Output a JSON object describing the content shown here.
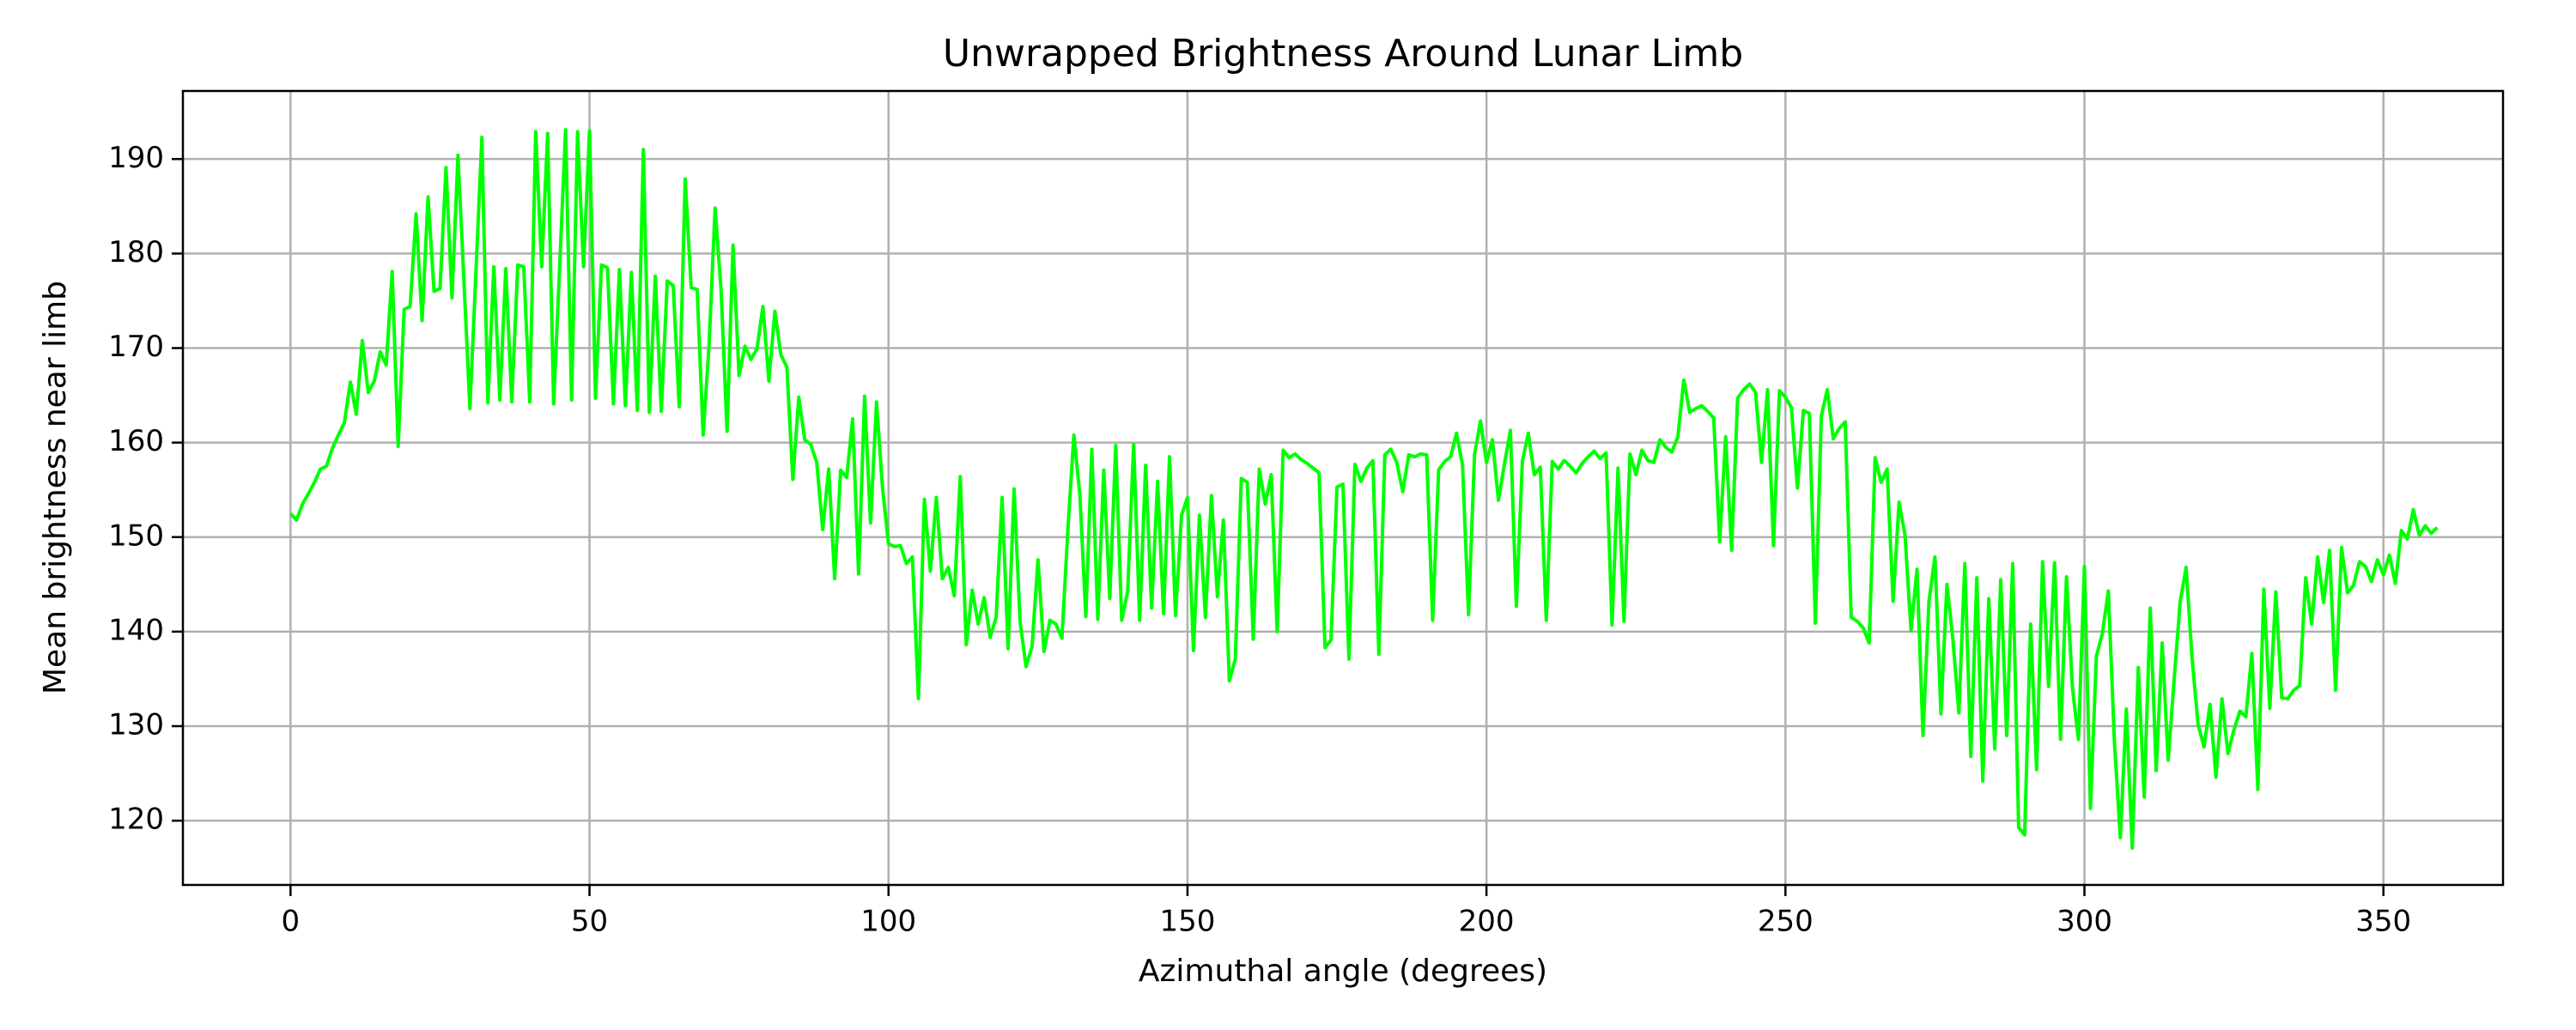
{
  "chart_data": {
    "type": "line",
    "title": "Unwrapped Brightness Around Lunar Limb",
    "x_label": "Azimuthal angle (degrees)",
    "y_label": "Mean brightness near limb",
    "xlim": [
      -18,
      370
    ],
    "ylim": [
      113.2,
      197.2
    ],
    "xticks": [
      0,
      50,
      100,
      150,
      200,
      250,
      300,
      350
    ],
    "yticks": [
      120,
      130,
      140,
      150,
      160,
      170,
      180,
      190
    ],
    "grid": true,
    "x": [
      0,
      1,
      2,
      3,
      4,
      5,
      6,
      7,
      8,
      9,
      10,
      11,
      12,
      13,
      14,
      15,
      16,
      17,
      18,
      19,
      20,
      21,
      22,
      23,
      24,
      25,
      26,
      27,
      28,
      29,
      30,
      31,
      32,
      33,
      34,
      35,
      36,
      37,
      38,
      39,
      40,
      41,
      42,
      43,
      44,
      45,
      46,
      47,
      48,
      49,
      50,
      51,
      52,
      53,
      54,
      55,
      56,
      57,
      58,
      59,
      60,
      61,
      62,
      63,
      64,
      65,
      66,
      67,
      68,
      69,
      70,
      71,
      72,
      73,
      74,
      75,
      76,
      77,
      78,
      79,
      80,
      81,
      82,
      83,
      84,
      85,
      86,
      87,
      88,
      89,
      90,
      91,
      92,
      93,
      94,
      95,
      96,
      97,
      98,
      99,
      100,
      101,
      102,
      103,
      104,
      105,
      106,
      107,
      108,
      109,
      110,
      111,
      112,
      113,
      114,
      115,
      116,
      117,
      118,
      119,
      120,
      121,
      122,
      123,
      124,
      125,
      126,
      127,
      128,
      129,
      130,
      131,
      132,
      133,
      134,
      135,
      136,
      137,
      138,
      139,
      140,
      141,
      142,
      143,
      144,
      145,
      146,
      147,
      148,
      149,
      150,
      151,
      152,
      153,
      154,
      155,
      156,
      157,
      158,
      159,
      160,
      161,
      162,
      163,
      164,
      165,
      166,
      167,
      168,
      169,
      170,
      171,
      172,
      173,
      174,
      175,
      176,
      177,
      178,
      179,
      180,
      181,
      182,
      183,
      184,
      185,
      186,
      187,
      188,
      189,
      190,
      191,
      192,
      193,
      194,
      195,
      196,
      197,
      198,
      199,
      200,
      201,
      202,
      203,
      204,
      205,
      206,
      207,
      208,
      209,
      210,
      211,
      212,
      213,
      214,
      215,
      216,
      217,
      218,
      219,
      220,
      221,
      222,
      223,
      224,
      225,
      226,
      227,
      228,
      229,
      230,
      231,
      232,
      233,
      234,
      235,
      236,
      237,
      238,
      239,
      240,
      241,
      242,
      243,
      244,
      245,
      246,
      247,
      248,
      249,
      250,
      251,
      252,
      253,
      254,
      255,
      256,
      257,
      258,
      259,
      260,
      261,
      262,
      263,
      264,
      265,
      266,
      267,
      268,
      269,
      270,
      271,
      272,
      273,
      274,
      275,
      276,
      277,
      278,
      279,
      280,
      281,
      282,
      283,
      284,
      285,
      286,
      287,
      288,
      289,
      290,
      291,
      292,
      293,
      294,
      295,
      296,
      297,
      298,
      299,
      300,
      301,
      302,
      303,
      304,
      305,
      306,
      307,
      308,
      309,
      310,
      311,
      312,
      313,
      314,
      315,
      316,
      317,
      318,
      319,
      320,
      321,
      322,
      323,
      324,
      325,
      326,
      327,
      328,
      329,
      330,
      331,
      332,
      333,
      334,
      335,
      336,
      337,
      338,
      339,
      340,
      341,
      342,
      343,
      344,
      345,
      346,
      347,
      348,
      349,
      350,
      351,
      352,
      353,
      354,
      355,
      356,
      357,
      358,
      359
    ],
    "series": [
      {
        "color": "#00ff00",
        "values": [
          152.5,
          151.8,
          153.5,
          154.6,
          155.8,
          157.2,
          157.5,
          159.4,
          160.8,
          162.1,
          166.4,
          163.0,
          170.8,
          165.3,
          166.5,
          169.6,
          168.2,
          178.1,
          159.6,
          174.1,
          174.4,
          184.2,
          172.9,
          186.0,
          176.0,
          176.3,
          189.1,
          175.3,
          190.4,
          177.1,
          163.6,
          178.0,
          192.3,
          164.2,
          178.6,
          164.5,
          178.4,
          164.3,
          178.8,
          178.6,
          164.3,
          192.9,
          178.6,
          192.7,
          164.1,
          178.5,
          193.1,
          164.5,
          192.9,
          178.6,
          193.0,
          164.7,
          178.8,
          178.5,
          164.1,
          178.3,
          163.9,
          178.0,
          163.4,
          191.0,
          163.2,
          177.6,
          163.3,
          177.1,
          176.6,
          163.8,
          187.9,
          176.4,
          176.2,
          160.8,
          170.4,
          184.8,
          176.2,
          161.2,
          180.9,
          167.1,
          170.2,
          168.8,
          169.9,
          174.4,
          166.5,
          173.9,
          169.3,
          168.0,
          156.1,
          164.8,
          160.3,
          159.8,
          157.9,
          150.8,
          157.2,
          145.6,
          157.1,
          156.3,
          162.5,
          146.1,
          164.9,
          151.5,
          164.3,
          155.2,
          149.3,
          149.0,
          149.1,
          147.2,
          147.9,
          132.9,
          154.0,
          146.4,
          154.2,
          145.6,
          146.8,
          143.8,
          156.4,
          138.6,
          144.4,
          140.8,
          143.6,
          139.4,
          141.5,
          154.2,
          138.2,
          155.1,
          141.1,
          136.3,
          138.4,
          147.6,
          137.9,
          141.2,
          140.8,
          139.3,
          150.8,
          160.8,
          154.5,
          141.6,
          159.3,
          141.3,
          157.1,
          143.5,
          159.7,
          141.2,
          144.3,
          159.8,
          141.2,
          157.6,
          142.5,
          155.9,
          141.9,
          158.5,
          141.7,
          152.3,
          154.2,
          138.0,
          152.3,
          141.5,
          154.4,
          143.7,
          151.8,
          134.8,
          137.1,
          156.2,
          155.8,
          139.2,
          157.2,
          153.5,
          156.6,
          140.0,
          159.2,
          158.4,
          158.8,
          158.2,
          157.8,
          157.3,
          156.8,
          138.3,
          139.1,
          155.3,
          155.6,
          137.1,
          157.7,
          155.9,
          157.3,
          158.1,
          137.6,
          158.7,
          159.3,
          157.9,
          154.8,
          158.7,
          158.5,
          158.8,
          158.7,
          141.2,
          157.1,
          158.0,
          158.5,
          161.0,
          157.6,
          141.8,
          158.7,
          162.3,
          157.9,
          160.3,
          153.9,
          157.7,
          161.3,
          142.7,
          158.0,
          161.0,
          156.6,
          157.4,
          141.2,
          158.0,
          157.2,
          158.1,
          157.5,
          156.8,
          157.8,
          158.5,
          159.1,
          158.3,
          158.9,
          140.7,
          157.3,
          141.1,
          158.8,
          156.6,
          159.2,
          158.1,
          157.9,
          160.3,
          159.5,
          159.0,
          160.6,
          166.6,
          163.2,
          163.6,
          163.9,
          163.3,
          162.6,
          149.5,
          160.6,
          148.6,
          164.7,
          165.6,
          166.2,
          165.3,
          157.9,
          165.6,
          149.1,
          165.5,
          164.8,
          163.7,
          155.2,
          163.4,
          163.1,
          140.9,
          162.8,
          165.6,
          160.4,
          161.5,
          162.2,
          141.5,
          141.1,
          140.4,
          138.8,
          158.4,
          155.8,
          157.2,
          143.2,
          153.7,
          150.2,
          140.1,
          146.6,
          129.0,
          143.2,
          147.9,
          131.3,
          145.0,
          139.2,
          131.4,
          147.2,
          126.8,
          145.7,
          124.2,
          143.5,
          127.6,
          145.5,
          129.0,
          147.2,
          119.3,
          118.5,
          140.8,
          125.4,
          147.4,
          134.2,
          147.3,
          128.6,
          145.8,
          134.0,
          128.6,
          146.9,
          121.3,
          137.4,
          139.8,
          144.3,
          128.5,
          118.2,
          131.8,
          117.1,
          136.2,
          122.5,
          142.5,
          125.3,
          138.8,
          126.4,
          134.9,
          143.1,
          146.8,
          137.2,
          130.2,
          127.8,
          132.3,
          124.6,
          132.9,
          127.1,
          129.6,
          131.6,
          131.0,
          137.7,
          123.3,
          144.5,
          131.9,
          144.2,
          133.0,
          132.9,
          133.8,
          134.3,
          145.7,
          140.8,
          147.9,
          143.1,
          148.6,
          133.8,
          148.9,
          144.1,
          144.9,
          147.4,
          146.9,
          145.3,
          147.6,
          146.0,
          148.1,
          145.1,
          150.7,
          149.8,
          152.9,
          150.2,
          151.2,
          150.4,
          151.0
        ]
      }
    ]
  }
}
